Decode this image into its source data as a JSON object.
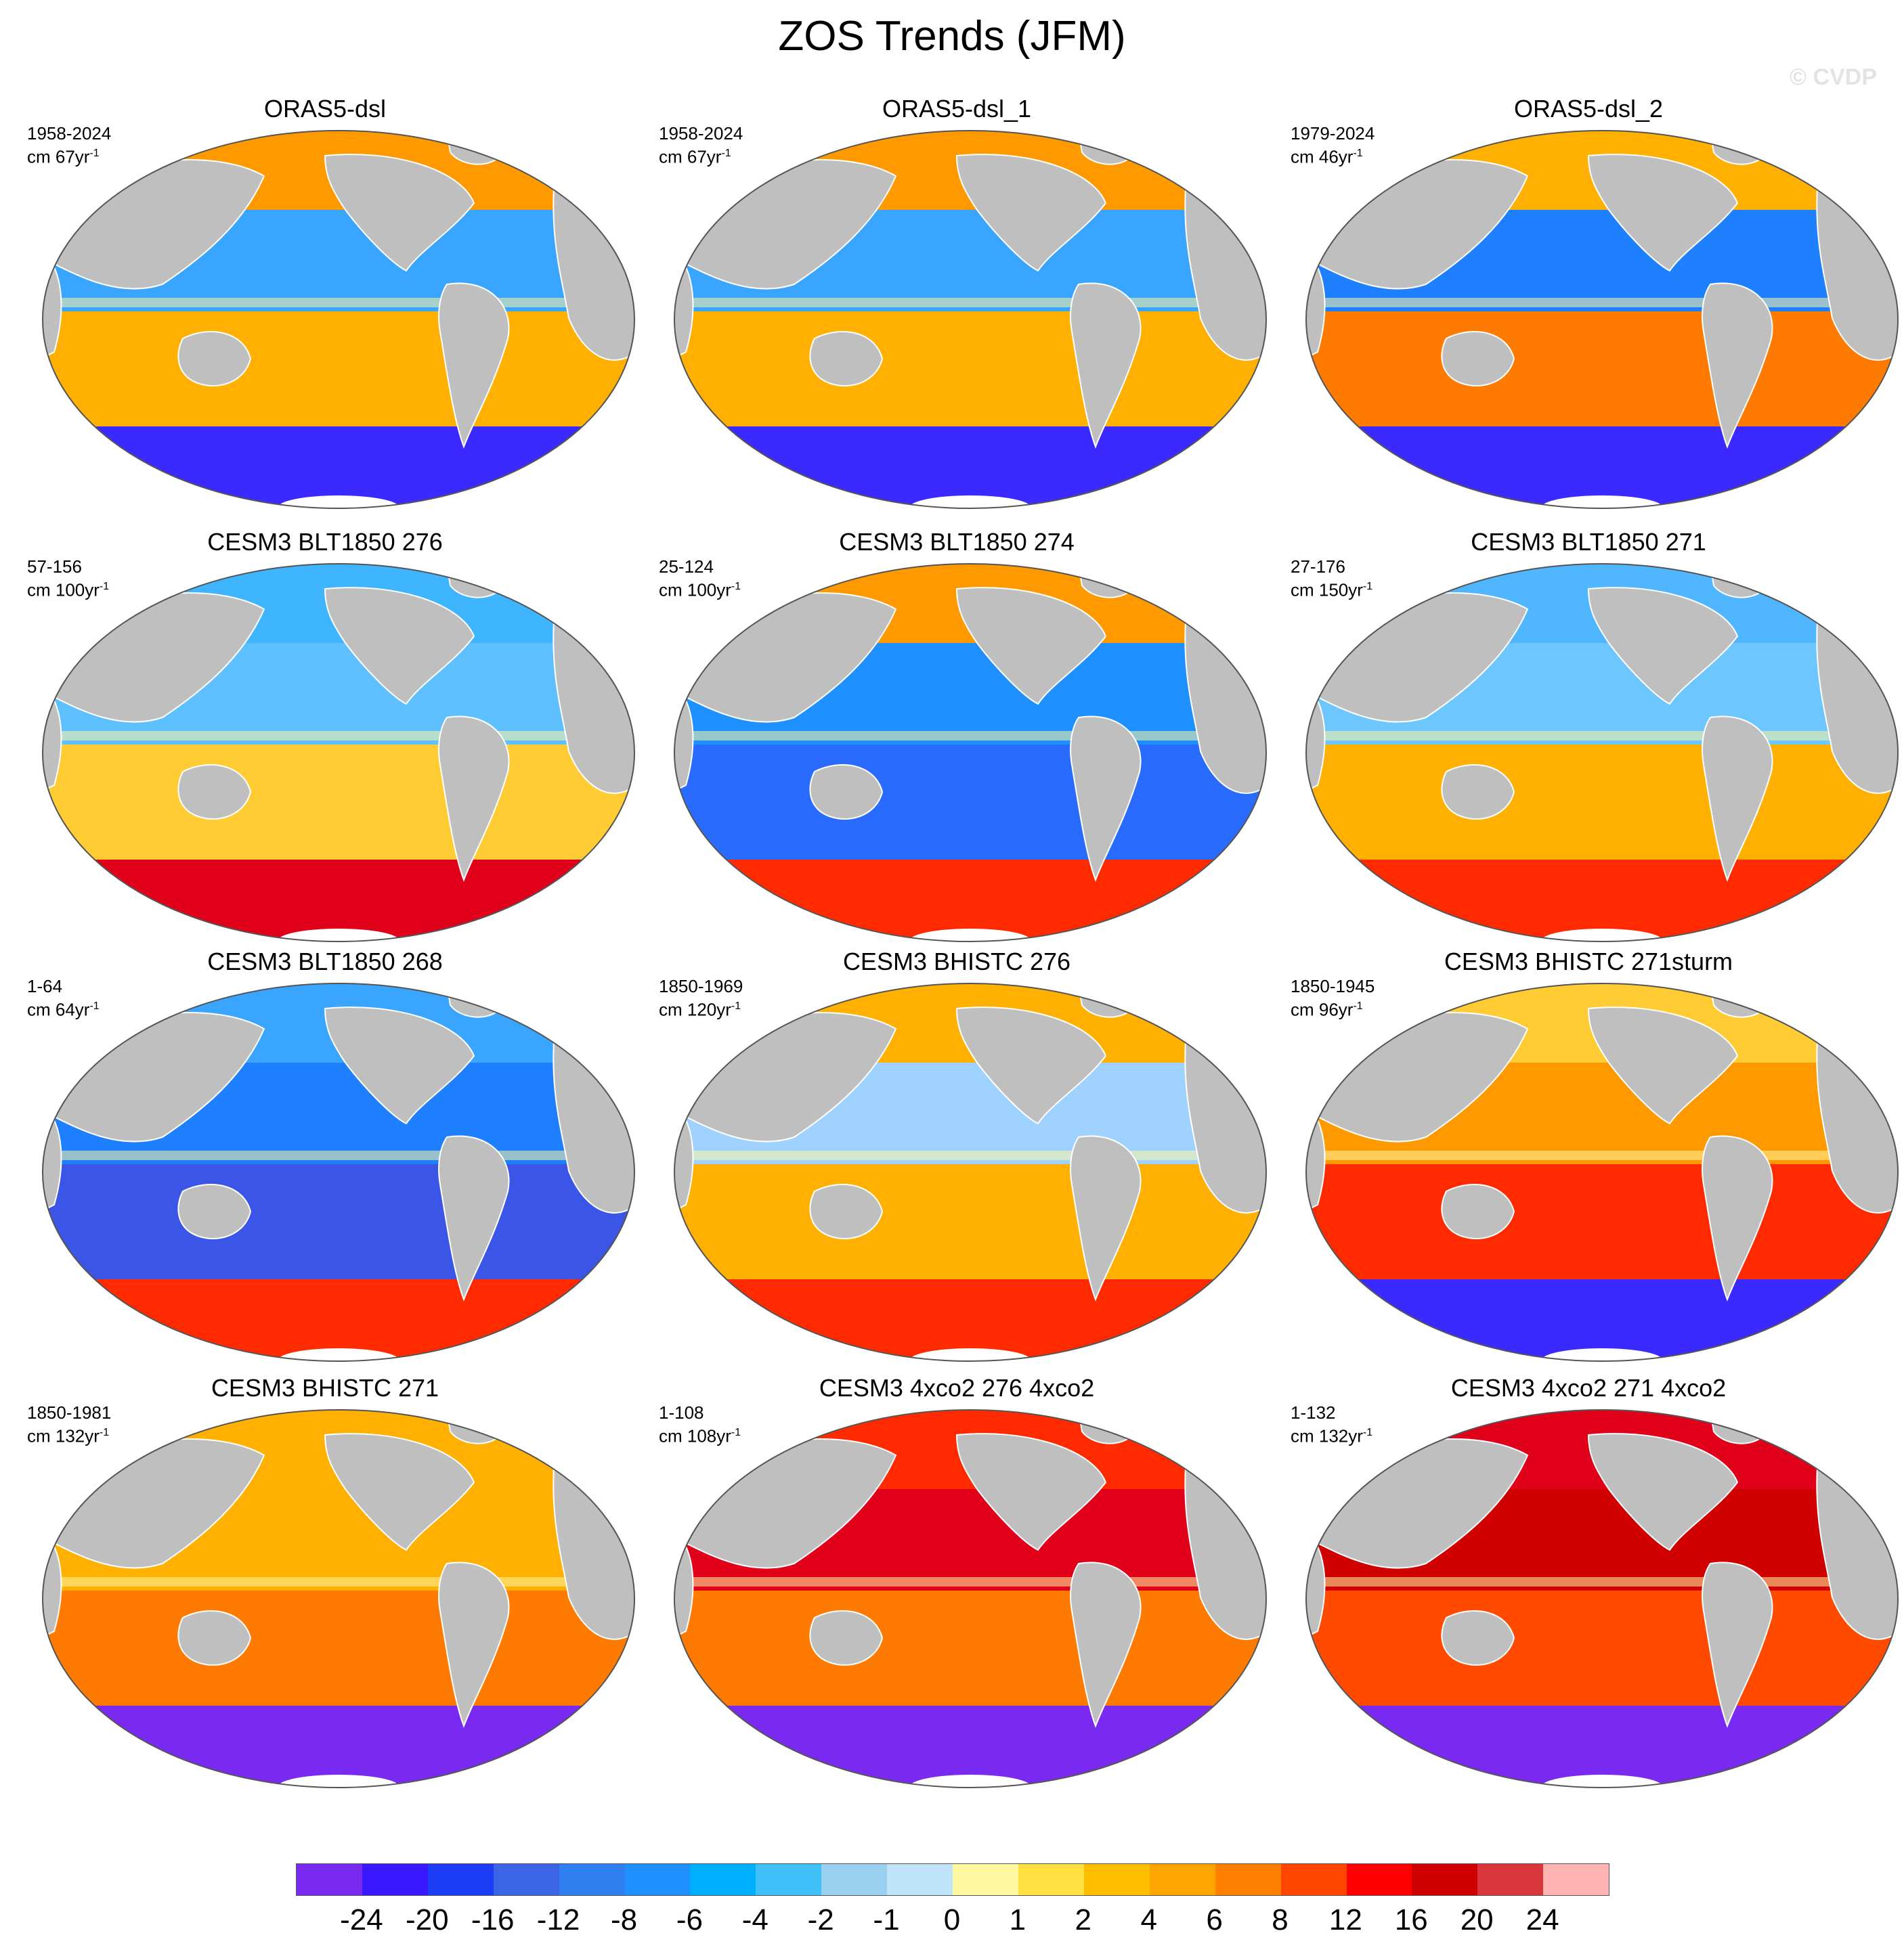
{
  "title": "ZOS Trends (JFM)",
  "watermark": "© CVDP",
  "colors": {
    "land": "#bfbfbf",
    "ocean_neutral": "#fff6a0"
  },
  "panels": [
    {
      "title": "ORAS5-dsl",
      "period": "1958-2024",
      "units_prefix": "cm 67yr",
      "units_exp": "-1",
      "pattern": {
        "north": "#ff9900",
        "tropics": "#3aa5ff",
        "south": "#ffb000",
        "far_south": "#3a2aff"
      }
    },
    {
      "title": "ORAS5-dsl_1",
      "period": "1958-2024",
      "units_prefix": "cm 67yr",
      "units_exp": "-1",
      "pattern": {
        "north": "#ff9900",
        "tropics": "#3aa5ff",
        "south": "#ffb000",
        "far_south": "#3a2aff"
      }
    },
    {
      "title": "ORAS5-dsl_2",
      "period": "1979-2024",
      "units_prefix": "cm 46yr",
      "units_exp": "-1",
      "pattern": {
        "north": "#ffb000",
        "tropics": "#1e7fff",
        "south": "#ff7a00",
        "far_south": "#3a2aff"
      }
    },
    {
      "title": "CESM3 BLT1850 276",
      "period": "57-156",
      "units_prefix": "cm 100yr",
      "units_exp": "-1",
      "pattern": {
        "north": "#40b5ff",
        "tropics": "#5fc0ff",
        "south": "#ffcc33",
        "far_south": "#e0001a"
      }
    },
    {
      "title": "CESM3 BLT1850 274",
      "period": "25-124",
      "units_prefix": "cm 100yr",
      "units_exp": "-1",
      "pattern": {
        "north": "#ff9900",
        "tropics": "#1e90ff",
        "south": "#2a6bff",
        "far_south": "#ff2a00"
      }
    },
    {
      "title": "CESM3 BLT1850 271",
      "period": "27-176",
      "units_prefix": "cm 150yr",
      "units_exp": "-1",
      "pattern": {
        "north": "#4fb6ff",
        "tropics": "#6ec6ff",
        "south": "#ffb000",
        "far_south": "#ff2a00"
      }
    },
    {
      "title": "CESM3 BLT1850 268",
      "period": "1-64",
      "units_prefix": "cm 64yr",
      "units_exp": "-1",
      "pattern": {
        "north": "#3aa5ff",
        "tropics": "#1e7fff",
        "south": "#3b55e6",
        "far_south": "#ff2a00"
      }
    },
    {
      "title": "CESM3 BHISTC 276",
      "period": "1850-1969",
      "units_prefix": "cm 120yr",
      "units_exp": "-1",
      "pattern": {
        "north": "#ffb000",
        "tropics": "#9fd2ff",
        "south": "#ffb000",
        "far_south": "#ff2a00"
      }
    },
    {
      "title": "CESM3 BHISTC 271sturm",
      "period": "1850-1945",
      "units_prefix": "cm 96yr",
      "units_exp": "-1",
      "pattern": {
        "north": "#ffcc33",
        "tropics": "#ff9900",
        "south": "#ff2a00",
        "far_south": "#3a2aff"
      }
    },
    {
      "title": "CESM3 BHISTC 271",
      "period": "1850-1981",
      "units_prefix": "cm 132yr",
      "units_exp": "-1",
      "pattern": {
        "north": "#ffb000",
        "tropics": "#ffb000",
        "south": "#ff7a00",
        "far_south": "#7a2af0"
      }
    },
    {
      "title": "CESM3 4xco2 276 4xco2",
      "period": "1-108",
      "units_prefix": "cm 108yr",
      "units_exp": "-1",
      "pattern": {
        "north": "#ff2a00",
        "tropics": "#e0001a",
        "south": "#ff7a00",
        "far_south": "#7a2af0"
      }
    },
    {
      "title": "CESM3 4xco2 271 4xco2",
      "period": "1-132",
      "units_prefix": "cm 132yr",
      "units_exp": "-1",
      "pattern": {
        "north": "#e0001a",
        "tropics": "#d10000",
        "south": "#ff4a00",
        "far_south": "#7a2af0"
      }
    }
  ],
  "colorbar": {
    "colors": [
      "#7a2af0",
      "#3a18ff",
      "#1c3cf5",
      "#3b65e6",
      "#2f7ff0",
      "#1e90ff",
      "#00b0ff",
      "#40c0f8",
      "#9ad0f0",
      "#bfe4fa",
      "#fff6a0",
      "#ffe040",
      "#ffbf00",
      "#ffa500",
      "#ff8000",
      "#ff4500",
      "#ff0000",
      "#d00000",
      "#d8363a",
      "#ffb4b4"
    ],
    "labels": [
      "-24",
      "-20",
      "-16",
      "-12",
      "-8",
      "-6",
      "-4",
      "-2",
      "-1",
      "0",
      "1",
      "2",
      "4",
      "6",
      "8",
      "12",
      "16",
      "20",
      "24"
    ]
  }
}
